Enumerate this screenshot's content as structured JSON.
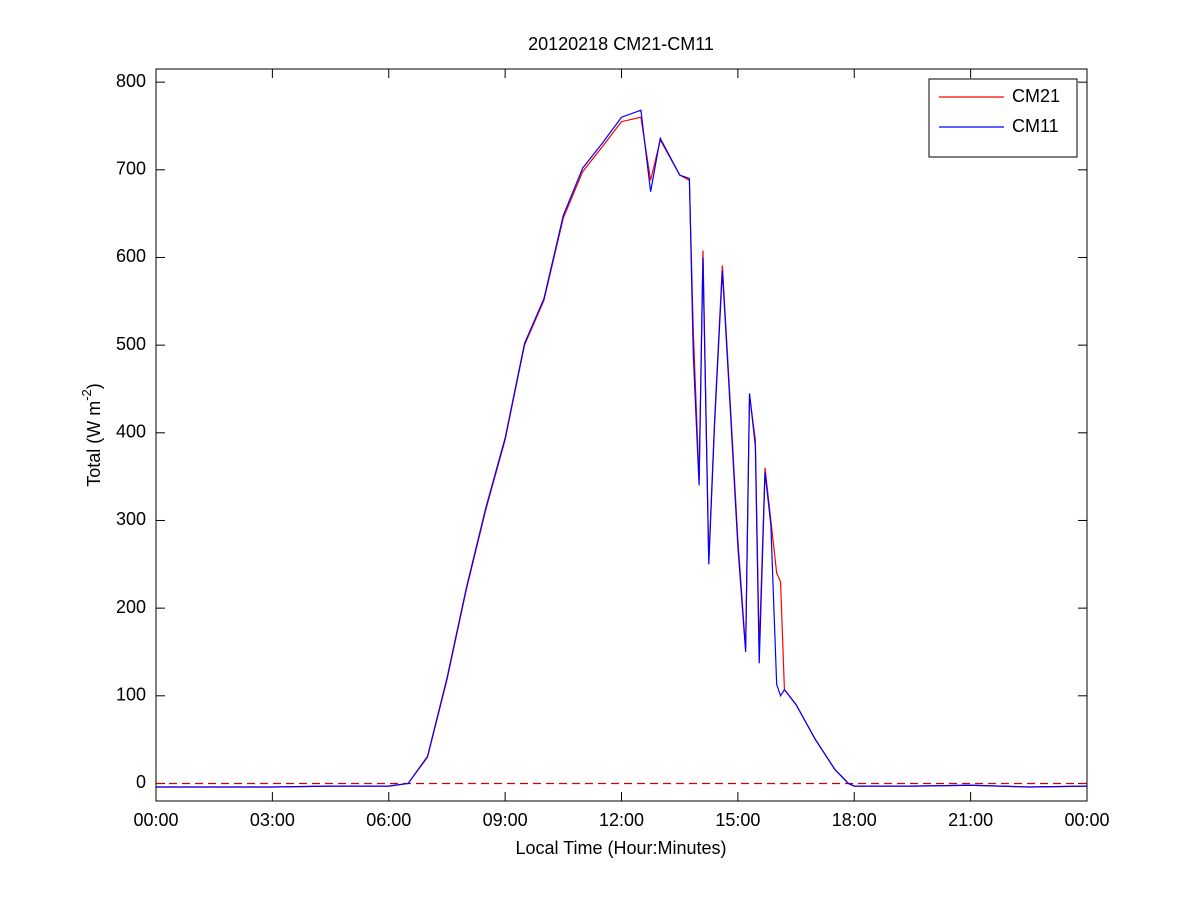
{
  "chart_data": {
    "type": "line",
    "title": "20120218 CM21-CM11",
    "xlabel": "Local Time (Hour:Minutes)",
    "ylabel": {
      "text": "Total (W m",
      "superscript": "-2",
      "suffix": ")"
    },
    "x": [
      0,
      1.5,
      3,
      4.5,
      6,
      6.5,
      7,
      7.5,
      8,
      8.5,
      9,
      9.5,
      10,
      10.5,
      11,
      11.5,
      12,
      12.5,
      12.75,
      13,
      13.5,
      13.75,
      13.85,
      14,
      14.1,
      14.25,
      14.4,
      14.6,
      14.8,
      15,
      15.2,
      15.3,
      15.45,
      15.55,
      15.7,
      15.85,
      16,
      16.1,
      16.2,
      16.5,
      17,
      17.5,
      17.85,
      18,
      19.5,
      21,
      22.5,
      24
    ],
    "series": [
      {
        "name": "CM21",
        "color": "#ff0000",
        "values": [
          -4,
          -4,
          -4,
          -3,
          -3,
          0,
          30,
          118,
          221,
          312,
          392,
          500,
          551,
          645,
          698,
          726,
          755,
          760,
          688,
          734,
          694,
          688,
          517,
          346,
          608,
          255,
          415,
          591,
          437,
          278,
          153,
          443,
          392,
          153,
          360,
          300,
          240,
          230,
          107,
          90,
          50,
          16,
          0,
          -3,
          -3,
          -2,
          -4,
          -3
        ]
      },
      {
        "name": "CM11",
        "color": "#0000ff",
        "values": [
          -4,
          -4,
          -4,
          -3,
          -3,
          0,
          31,
          120,
          223,
          314,
          394,
          502,
          553,
          648,
          702,
          730,
          760,
          768,
          675,
          736,
          694,
          690,
          490,
          340,
          600,
          250,
          410,
          585,
          430,
          270,
          150,
          445,
          385,
          137,
          355,
          295,
          113,
          100,
          107,
          90,
          50,
          16,
          0,
          -3,
          -3,
          -2,
          -4,
          -3
        ]
      }
    ],
    "reference_line": {
      "value": 0,
      "color": "#cc0000",
      "style": "dashed"
    },
    "xlim": [
      0,
      24
    ],
    "xticks": [
      {
        "value": 0,
        "label": "00:00"
      },
      {
        "value": 3,
        "label": "03:00"
      },
      {
        "value": 6,
        "label": "06:00"
      },
      {
        "value": 9,
        "label": "09:00"
      },
      {
        "value": 12,
        "label": "12:00"
      },
      {
        "value": 15,
        "label": "15:00"
      },
      {
        "value": 18,
        "label": "18:00"
      },
      {
        "value": 21,
        "label": "21:00"
      },
      {
        "value": 24,
        "label": "00:00"
      }
    ],
    "ylim": [
      -20,
      815
    ],
    "yticks": [
      0,
      100,
      200,
      300,
      400,
      500,
      600,
      700,
      800
    ],
    "grid": false,
    "legend": "northeast"
  }
}
